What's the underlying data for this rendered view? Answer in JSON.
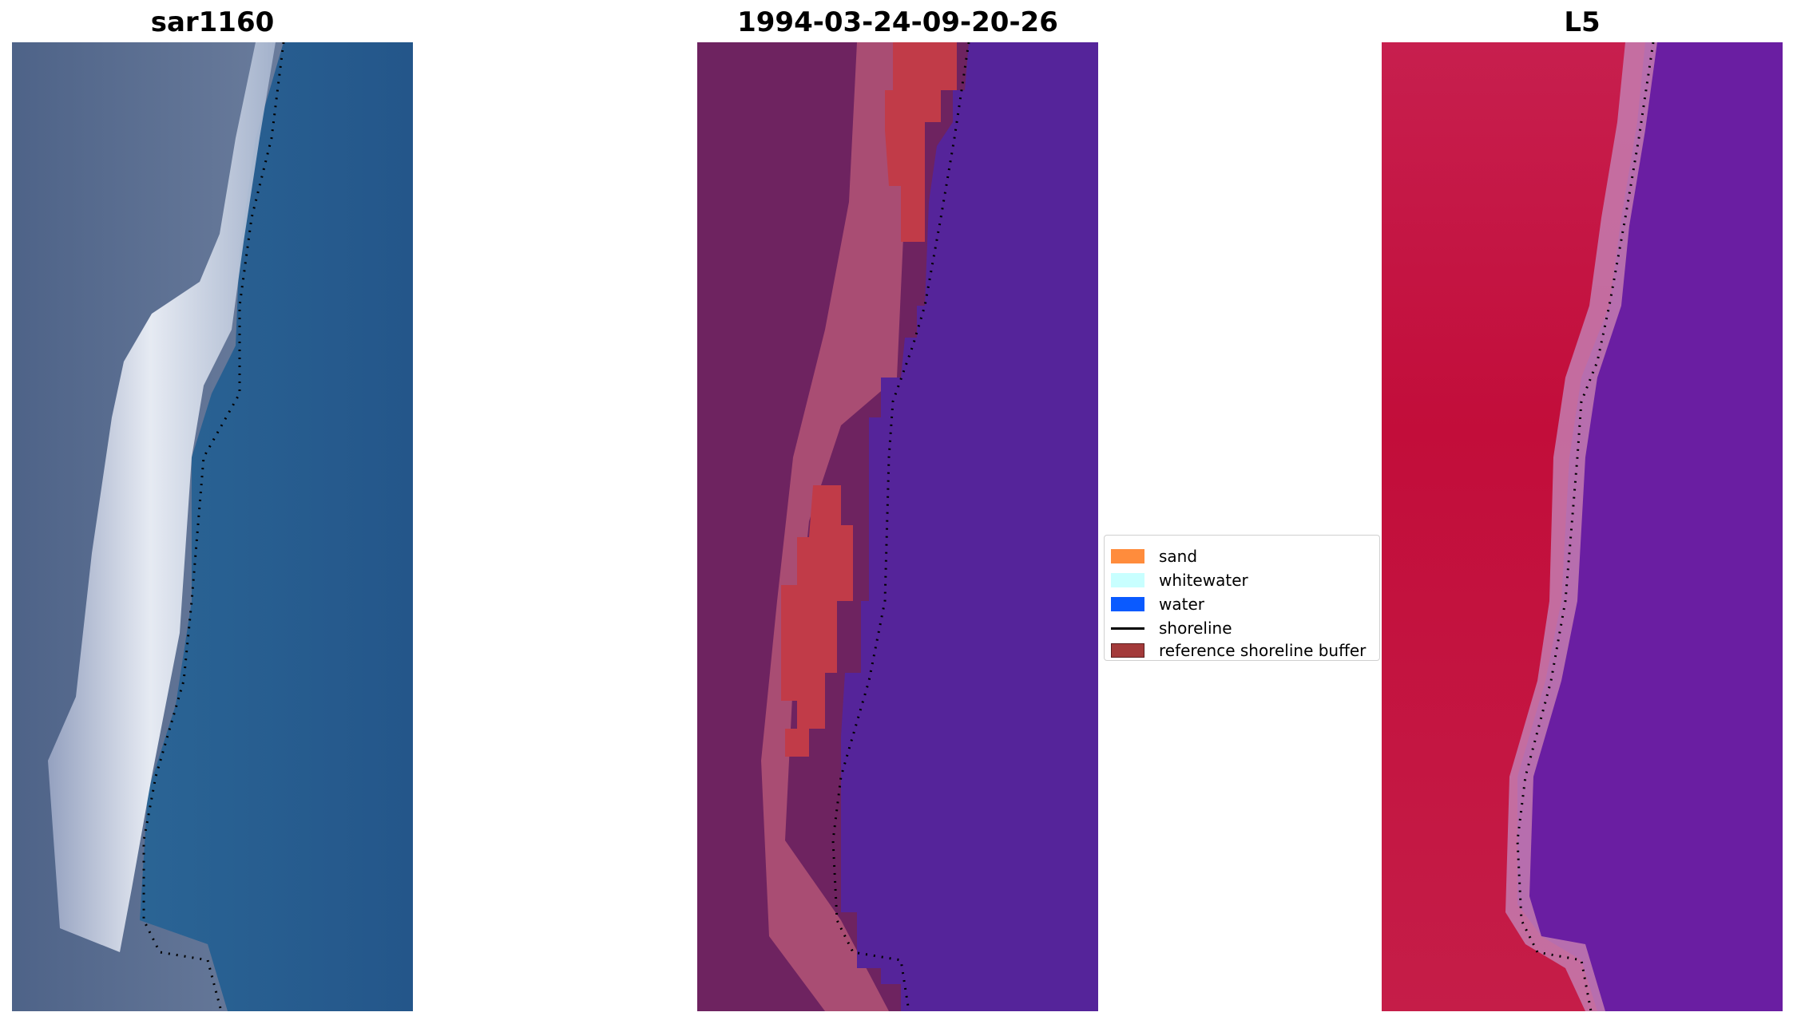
{
  "panels": [
    {
      "title": "sar1160",
      "kind": "rgb-image"
    },
    {
      "title": "1994-03-24-09-20-26",
      "kind": "classified-image"
    },
    {
      "title": "L5",
      "kind": "index-image"
    }
  ],
  "legend": {
    "items": [
      {
        "label": "sand",
        "color": "#ff8c3c",
        "style": "patch"
      },
      {
        "label": "whitewater",
        "color": "#c8ffff",
        "style": "patch"
      },
      {
        "label": "water",
        "color": "#0a5aff",
        "style": "patch"
      },
      {
        "label": "shoreline",
        "color": "#000000",
        "style": "line"
      },
      {
        "label": "reference shoreline buffer",
        "color": "#a33a3a",
        "style": "patch"
      }
    ]
  },
  "colors": {
    "rgb_land": "#5d6f92",
    "rgb_sand": "#e8eef6",
    "rgb_water": "#2a6496",
    "class_land": "#6e2360",
    "class_buffer": "#c2607c",
    "class_sand": "#c13b48",
    "class_water": "#55249a",
    "index_land": "#c41a46",
    "index_edge": "#c47cb0",
    "index_water": "#6a1ea2"
  }
}
